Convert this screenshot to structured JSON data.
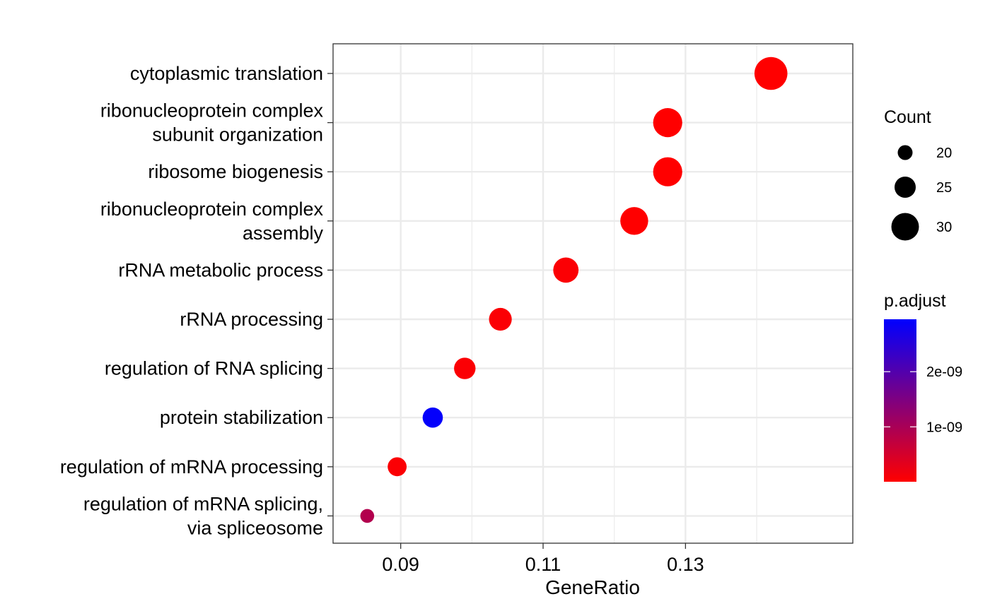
{
  "chart_data": {
    "type": "scatter",
    "title": "",
    "xlabel": "GeneRatio",
    "ylabel": "",
    "xlim": [
      0.0805,
      0.1535
    ],
    "x_ticks": [
      "0.09",
      "0.11",
      "0.13"
    ],
    "grid": true,
    "legend_position": "right",
    "categories": [
      [
        "cytoplasmic translation"
      ],
      [
        "ribonucleoprotein complex",
        "subunit organization"
      ],
      [
        "ribosome biogenesis"
      ],
      [
        "ribonucleoprotein complex",
        "assembly"
      ],
      [
        "rRNA metabolic process"
      ],
      [
        "rRNA processing"
      ],
      [
        "regulation of RNA splicing"
      ],
      [
        "protein stabilization"
      ],
      [
        "regulation of mRNA processing"
      ],
      [
        "regulation of mRNA splicing,",
        "via spliceosome"
      ]
    ],
    "points": [
      {
        "x": 0.142,
        "count": 32,
        "p_adjust": 1e-11
      },
      {
        "x": 0.1275,
        "count": 29,
        "p_adjust": 1e-11
      },
      {
        "x": 0.1275,
        "count": 29,
        "p_adjust": 1e-11
      },
      {
        "x": 0.1228,
        "count": 28,
        "p_adjust": 1e-11
      },
      {
        "x": 0.1132,
        "count": 26,
        "p_adjust": 5e-11
      },
      {
        "x": 0.104,
        "count": 24,
        "p_adjust": 5e-11
      },
      {
        "x": 0.099,
        "count": 23,
        "p_adjust": 5e-11
      },
      {
        "x": 0.0945,
        "count": 22,
        "p_adjust": 2.9e-09
      },
      {
        "x": 0.0895,
        "count": 21,
        "p_adjust": 5e-11
      },
      {
        "x": 0.0853,
        "count": 17,
        "p_adjust": 9e-10
      }
    ],
    "size_legend": {
      "title": "Count",
      "entries": [
        {
          "label": "20",
          "value": 20
        },
        {
          "label": "25",
          "value": 25
        },
        {
          "label": "30",
          "value": 30
        }
      ]
    },
    "color_legend": {
      "title": "p.adjust",
      "low_color": "#ff0000",
      "high_color": "#0000ff",
      "range": [
        5e-12,
        2.95e-09
      ],
      "ticks": [
        {
          "label": "1e-09",
          "value": 1e-09
        },
        {
          "label": "2e-09",
          "value": 2e-09
        }
      ]
    }
  }
}
